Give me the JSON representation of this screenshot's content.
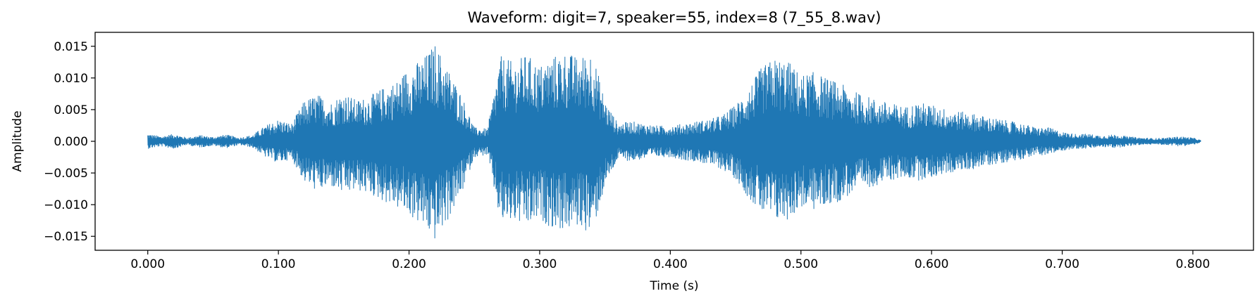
{
  "chart_data": {
    "type": "line",
    "title": "Waveform: digit=7, speaker=55, index=8  (7_55_8.wav)",
    "xlabel": "Time (s)",
    "ylabel": "Amplitude",
    "xlim": [
      -0.0403,
      0.8464
    ],
    "ylim": [
      -0.0172,
      0.0172
    ],
    "xticks": [
      0.0,
      0.1,
      0.2,
      0.3,
      0.4,
      0.5,
      0.6,
      0.7,
      0.8
    ],
    "xtick_labels": [
      "0.000",
      "0.100",
      "0.200",
      "0.300",
      "0.400",
      "0.500",
      "0.600",
      "0.700",
      "0.800"
    ],
    "yticks": [
      0.015,
      0.01,
      0.005,
      0.0,
      -0.005,
      -0.01,
      -0.015
    ],
    "ytick_labels": [
      "0.015",
      "0.010",
      "0.005",
      "0.000",
      "−0.005",
      "−0.010",
      "−0.015"
    ],
    "grid": false,
    "line_color": "#1f77b4",
    "series": [
      {
        "x": [
          0.0,
          0.01,
          0.02,
          0.03,
          0.04,
          0.05,
          0.06,
          0.07,
          0.08,
          0.09,
          0.1,
          0.11,
          0.12,
          0.13,
          0.14,
          0.15,
          0.16,
          0.17,
          0.18,
          0.19,
          0.2,
          0.21,
          0.22,
          0.23,
          0.24,
          0.25,
          0.26,
          0.27,
          0.28,
          0.29,
          0.3,
          0.31,
          0.32,
          0.33,
          0.34,
          0.35,
          0.36,
          0.37,
          0.38,
          0.39,
          0.4,
          0.41,
          0.42,
          0.43,
          0.44,
          0.45,
          0.46,
          0.47,
          0.48,
          0.49,
          0.5,
          0.51,
          0.52,
          0.53,
          0.54,
          0.55,
          0.56,
          0.57,
          0.58,
          0.59,
          0.6,
          0.61,
          0.62,
          0.63,
          0.64,
          0.65,
          0.66,
          0.67,
          0.68,
          0.69,
          0.7,
          0.71,
          0.72,
          0.73,
          0.74,
          0.75,
          0.76,
          0.77,
          0.78,
          0.79,
          0.8,
          0.806
        ],
        "upper": [
          0.0012,
          0.0008,
          0.0012,
          0.0006,
          0.001,
          0.0007,
          0.0011,
          0.0006,
          0.001,
          0.0025,
          0.0035,
          0.0028,
          0.0065,
          0.0075,
          0.0062,
          0.0078,
          0.0065,
          0.0072,
          0.0085,
          0.0095,
          0.0118,
          0.013,
          0.0155,
          0.0115,
          0.0075,
          0.0022,
          0.002,
          0.0135,
          0.0125,
          0.0138,
          0.012,
          0.0135,
          0.0142,
          0.0132,
          0.0145,
          0.0065,
          0.0028,
          0.0032,
          0.0028,
          0.0025,
          0.0025,
          0.0028,
          0.0032,
          0.0035,
          0.0042,
          0.0058,
          0.0085,
          0.0118,
          0.0132,
          0.0128,
          0.0105,
          0.011,
          0.01,
          0.0092,
          0.008,
          0.0072,
          0.0065,
          0.006,
          0.0055,
          0.0062,
          0.0058,
          0.0052,
          0.0048,
          0.0045,
          0.004,
          0.0036,
          0.0032,
          0.0028,
          0.0022,
          0.0022,
          0.0015,
          0.0012,
          0.0012,
          0.0009,
          0.0011,
          0.0008,
          0.0006,
          0.0005,
          0.0006,
          0.0008,
          0.0006,
          0.0002
        ],
        "lower": [
          -0.0012,
          -0.0008,
          -0.0012,
          -0.0006,
          -0.001,
          -0.0007,
          -0.0011,
          -0.0006,
          -0.001,
          -0.0025,
          -0.0035,
          -0.0028,
          -0.0065,
          -0.008,
          -0.0072,
          -0.0085,
          -0.0078,
          -0.0085,
          -0.0095,
          -0.0105,
          -0.0118,
          -0.0135,
          -0.0158,
          -0.0125,
          -0.0085,
          -0.0025,
          -0.0022,
          -0.0132,
          -0.0128,
          -0.0138,
          -0.0125,
          -0.0138,
          -0.0142,
          -0.0135,
          -0.0148,
          -0.0072,
          -0.0028,
          -0.0032,
          -0.0028,
          -0.0025,
          -0.0025,
          -0.003,
          -0.0032,
          -0.0038,
          -0.0045,
          -0.006,
          -0.009,
          -0.0115,
          -0.0128,
          -0.0125,
          -0.0105,
          -0.011,
          -0.0102,
          -0.0095,
          -0.0082,
          -0.0075,
          -0.0068,
          -0.0062,
          -0.0058,
          -0.0062,
          -0.0058,
          -0.0052,
          -0.0048,
          -0.0045,
          -0.004,
          -0.0036,
          -0.0032,
          -0.0028,
          -0.0022,
          -0.0022,
          -0.0015,
          -0.0012,
          -0.0012,
          -0.0009,
          -0.0011,
          -0.0008,
          -0.0006,
          -0.0005,
          -0.0006,
          -0.0008,
          -0.0006,
          -0.0002
        ]
      }
    ]
  }
}
